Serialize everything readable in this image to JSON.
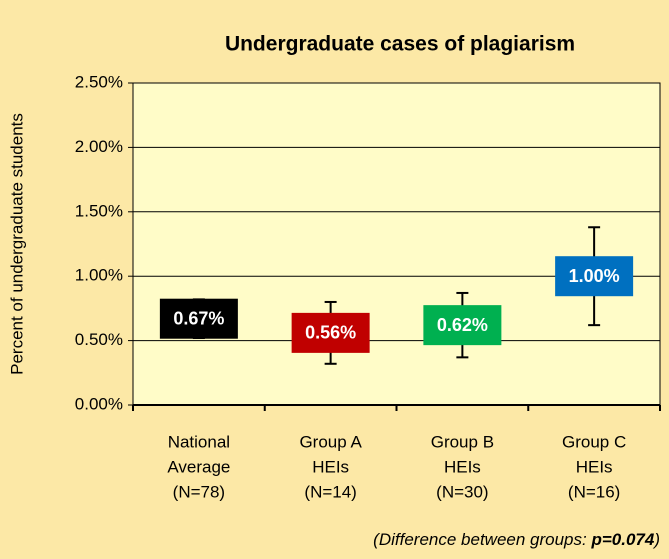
{
  "chart_data": {
    "type": "point_error",
    "title": "Undergraduate cases of plagiarism",
    "y_label": "Percent of undergraduate students",
    "categories": [
      [
        "National",
        "Average",
        "(N=78)"
      ],
      [
        "Group A",
        "HEIs",
        "(N=14)"
      ],
      [
        "Group B",
        "HEIs",
        "(N=30)"
      ],
      [
        "Group C",
        "HEIs",
        "(N=16)"
      ]
    ],
    "values": [
      0.67,
      0.56,
      0.62,
      1.0
    ],
    "value_labels": [
      "0.67%",
      "0.56%",
      "0.62%",
      "1.00%"
    ],
    "errors": [
      0.15,
      0.24,
      0.25,
      0.38
    ],
    "colors": [
      "#000000",
      "#c00000",
      "#00b050",
      "#0070c0"
    ],
    "ylim": [
      0,
      2.5
    ],
    "yticks": [
      {
        "value": 0,
        "label": "0.00%"
      },
      {
        "value": 0.5,
        "label": "0.50%"
      },
      {
        "value": 1,
        "label": "1.00%"
      },
      {
        "value": 1.5,
        "label": "1.50%"
      },
      {
        "value": 2,
        "label": "2.00%"
      },
      {
        "value": 2.5,
        "label": "2.50%"
      }
    ],
    "grid": true,
    "annotation": [
      "(Difference between groups: ",
      "p=0.074",
      ")"
    ]
  }
}
